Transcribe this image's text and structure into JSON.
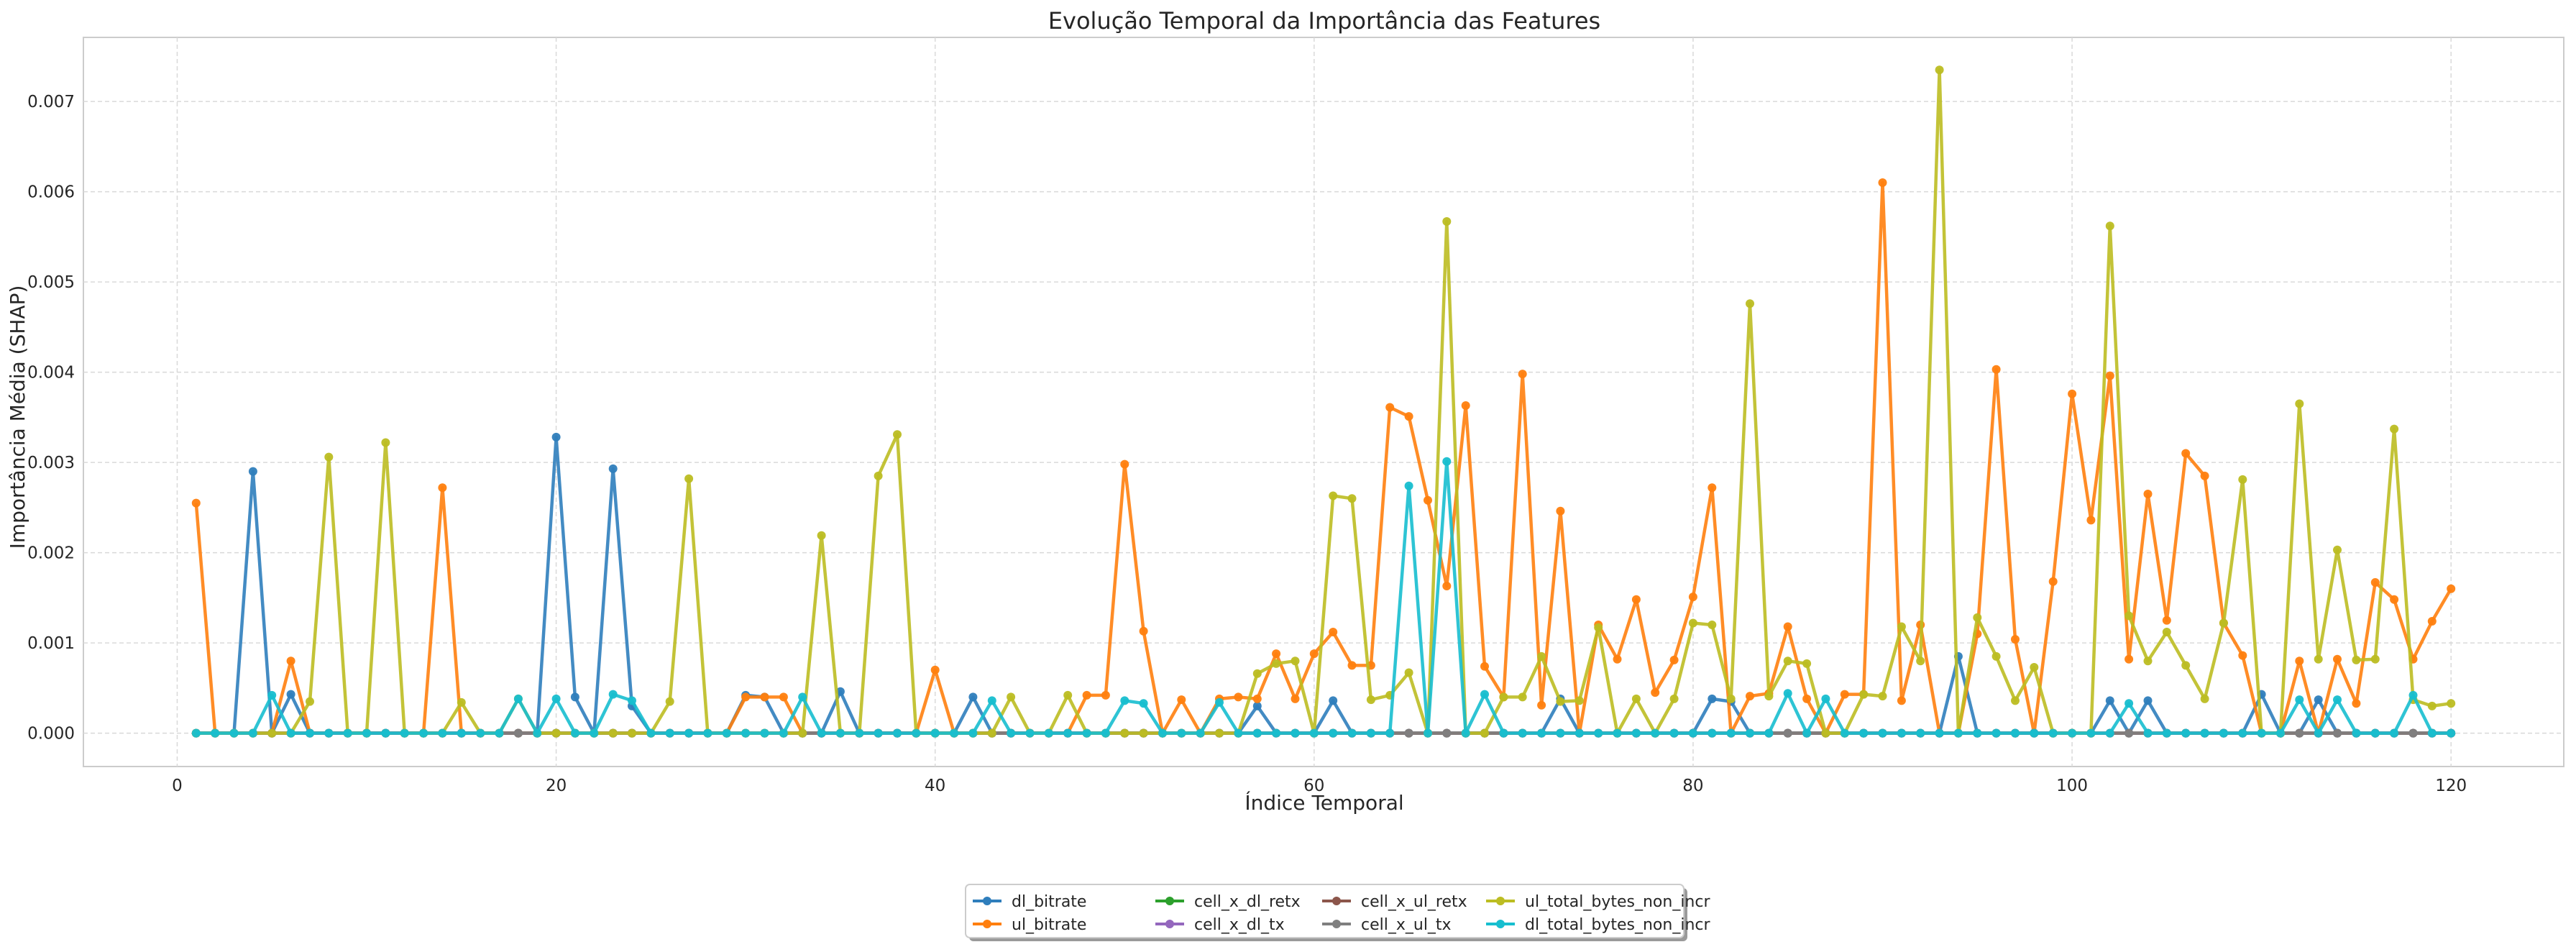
{
  "chart_data": {
    "type": "line",
    "title": "Evolução Temporal da Importância das Features",
    "xlabel": "Índice Temporal",
    "ylabel": "Importância Média (SHAP)",
    "xlim": [
      -4.95,
      125.95
    ],
    "ylim": [
      -0.00037,
      0.00771
    ],
    "xticks": [
      0,
      20,
      40,
      60,
      80,
      100,
      120
    ],
    "yticks": [
      0.0,
      0.001,
      0.002,
      0.003,
      0.004,
      0.005,
      0.006,
      0.007
    ],
    "ytick_labels": [
      "0.000",
      "0.001",
      "0.002",
      "0.003",
      "0.004",
      "0.005",
      "0.006",
      "0.007"
    ],
    "grid": true,
    "legend_position": "bottom-center",
    "x": [
      1,
      2,
      3,
      4,
      5,
      6,
      7,
      8,
      9,
      10,
      11,
      12,
      13,
      14,
      15,
      16,
      17,
      18,
      19,
      20,
      21,
      22,
      23,
      24,
      25,
      26,
      27,
      28,
      29,
      30,
      31,
      32,
      33,
      34,
      35,
      36,
      37,
      38,
      39,
      40,
      41,
      42,
      43,
      44,
      45,
      46,
      47,
      48,
      49,
      50,
      51,
      52,
      53,
      54,
      55,
      56,
      57,
      58,
      59,
      60,
      61,
      62,
      63,
      64,
      65,
      66,
      67,
      68,
      69,
      70,
      71,
      72,
      73,
      74,
      75,
      76,
      77,
      78,
      79,
      80,
      81,
      82,
      83,
      84,
      85,
      86,
      87,
      88,
      89,
      90,
      91,
      92,
      93,
      94,
      95,
      96,
      97,
      98,
      99,
      100,
      101,
      102,
      103,
      104,
      105,
      106,
      107,
      108,
      109,
      110,
      111,
      112,
      113,
      114,
      115,
      116,
      117,
      118,
      119,
      120
    ],
    "series": [
      {
        "name": "dl_bitrate",
        "color": "#2f7ebc",
        "values": [
          0,
          0,
          0,
          0.0029,
          0,
          0.00043,
          0,
          0,
          0,
          0,
          0,
          0,
          0,
          0,
          0,
          0,
          0,
          0,
          0,
          0.00328,
          0.0004,
          0,
          0.00293,
          0.0003,
          0,
          0,
          0,
          0,
          0,
          0.00042,
          0.0004,
          0,
          0,
          0,
          0.00046,
          0,
          0,
          0,
          0,
          0,
          0,
          0.0004,
          0,
          0,
          0,
          0,
          0,
          0,
          0,
          0,
          0,
          0,
          0,
          0,
          0,
          0,
          0.0003,
          0,
          0,
          0,
          0.00036,
          0,
          0,
          0,
          0,
          0,
          0,
          0,
          0,
          0,
          0,
          0,
          0.00038,
          0,
          0,
          0,
          0,
          0,
          0,
          0,
          0.00038,
          0.00035,
          0,
          0,
          0,
          0,
          0,
          0,
          0,
          0,
          0,
          0,
          0,
          0.00085,
          0,
          0,
          0,
          0,
          0,
          0,
          0,
          0.00036,
          0,
          0.00036,
          0,
          0,
          0,
          0,
          0,
          0.00043,
          0,
          0,
          0.00037,
          0,
          0,
          0,
          0,
          0,
          0,
          0
        ]
      },
      {
        "name": "ul_bitrate",
        "color": "#ff7f0e",
        "values": [
          0.00255,
          0,
          0,
          0,
          0,
          0.0008,
          0,
          0,
          0,
          0,
          0,
          0,
          0,
          0.00272,
          0,
          0,
          0,
          0,
          0,
          0,
          0,
          0,
          0,
          0,
          0,
          0,
          0,
          0,
          0,
          0.0004,
          0.0004,
          0.0004,
          0,
          0,
          0,
          0,
          0,
          0,
          0,
          0.0007,
          0,
          0,
          0,
          0,
          0,
          0,
          0,
          0.00042,
          0.00042,
          0.00298,
          0.00113,
          0,
          0.00037,
          0,
          0.00038,
          0.0004,
          0.00038,
          0.00088,
          0.00038,
          0.00088,
          0.00112,
          0.00075,
          0.00075,
          0.00361,
          0.00351,
          0.00258,
          0.00163,
          0.00363,
          0.00074,
          0.0004,
          0.00398,
          0.00031,
          0.00246,
          0,
          0.0012,
          0.00082,
          0.00148,
          0.00045,
          0.00081,
          0.00151,
          0.00272,
          0,
          0.00041,
          0.00044,
          0.00118,
          0.00038,
          0,
          0.00043,
          0.00043,
          0.0061,
          0.00036,
          0.0012,
          0,
          0,
          0.0011,
          0.00403,
          0.00104,
          0,
          0.00168,
          0.00376,
          0.00236,
          0.00396,
          0.00082,
          0.00265,
          0.00125,
          0.0031,
          0.00285,
          0.00122,
          0.00086,
          0,
          0,
          0.0008,
          0,
          0.00082,
          0.00033,
          0.00167,
          0.00148,
          0.00082,
          0.00124,
          0.0016
        ]
      },
      {
        "name": "cell_x_dl_retx",
        "color": "#2ca02c",
        "values": [
          0,
          0,
          0,
          0,
          0,
          0,
          0,
          0,
          0,
          0,
          0,
          0,
          0,
          0,
          0,
          0,
          0,
          0,
          0,
          0,
          0,
          0,
          0,
          0,
          0,
          0,
          0,
          0,
          0,
          0,
          0,
          0,
          0,
          0,
          0,
          0,
          0,
          0,
          0,
          0,
          0,
          0,
          0,
          0,
          0,
          0,
          0,
          0,
          0,
          0,
          0,
          0,
          0,
          0,
          0,
          0,
          0,
          0,
          0,
          0,
          0,
          0,
          0,
          0,
          0,
          0,
          0,
          0,
          0,
          0,
          0,
          0,
          0,
          0,
          0,
          0,
          0,
          0,
          0,
          0,
          0,
          0,
          0,
          0,
          0,
          0,
          0,
          0,
          0,
          0,
          0,
          0,
          0,
          0,
          0,
          0,
          0,
          0,
          0,
          0,
          0,
          0,
          0,
          0,
          0,
          0,
          0,
          0,
          0,
          0,
          0,
          0,
          0,
          0,
          0,
          0,
          0,
          0,
          0,
          0
        ]
      },
      {
        "name": "cell_x_dl_tx",
        "color": "#9467bd",
        "values": [
          0,
          0,
          0,
          0,
          0,
          0,
          0,
          0,
          0,
          0,
          0,
          0,
          0,
          0,
          0,
          0,
          0,
          0,
          0,
          0,
          0,
          0,
          0,
          0,
          0,
          0,
          0,
          0,
          0,
          0,
          0,
          0,
          0,
          0,
          0,
          0,
          0,
          0,
          0,
          0,
          0,
          0,
          0,
          0,
          0,
          0,
          0,
          0,
          0,
          0,
          0,
          0,
          0,
          0,
          0,
          0,
          0,
          0,
          0,
          0,
          0,
          0,
          0,
          0,
          0,
          0,
          0,
          0,
          0,
          0,
          0,
          0,
          0,
          0,
          0,
          0,
          0,
          0,
          0,
          0,
          0,
          0,
          0,
          0,
          0,
          0,
          0,
          0,
          0,
          0,
          0,
          0,
          0,
          0,
          0,
          0,
          0,
          0,
          0,
          0,
          0,
          0,
          0,
          0,
          0,
          0,
          0,
          0,
          0,
          0,
          0,
          0,
          0,
          0,
          0,
          0,
          0,
          0,
          0,
          0
        ]
      },
      {
        "name": "cell_x_ul_retx",
        "color": "#8c564b",
        "values": [
          0,
          0,
          0,
          0,
          0,
          0,
          0,
          0,
          0,
          0,
          0,
          0,
          0,
          0,
          0,
          0,
          0,
          0,
          0,
          0,
          0,
          0,
          0,
          0,
          0,
          0,
          0,
          0,
          0,
          0,
          0,
          0,
          0,
          0,
          0,
          0,
          0,
          0,
          0,
          0,
          0,
          0,
          0,
          0,
          0,
          0,
          0,
          0,
          0,
          0,
          0,
          0,
          0,
          0,
          0,
          0,
          0,
          0,
          0,
          0,
          0,
          0,
          0,
          0,
          0,
          0,
          0,
          0,
          0,
          0,
          0,
          0,
          0,
          0,
          0,
          0,
          0,
          0,
          0,
          0,
          0,
          0,
          0,
          0,
          0,
          0,
          0,
          0,
          0,
          0,
          0,
          0,
          0,
          0,
          0,
          0,
          0,
          0,
          0,
          0,
          0,
          0,
          0,
          0,
          0,
          0,
          0,
          0,
          0,
          0,
          0,
          0,
          0,
          0,
          0,
          0,
          0,
          0,
          0,
          0
        ]
      },
      {
        "name": "cell_x_ul_tx",
        "color": "#7f7f7f",
        "values": [
          0,
          0,
          0,
          0,
          0,
          0,
          0,
          0,
          0,
          0,
          0,
          0,
          0,
          0,
          0,
          0,
          0,
          0,
          0,
          0,
          0,
          0,
          0,
          0,
          0,
          0,
          0,
          0,
          0,
          0,
          0,
          0,
          0,
          0,
          0,
          0,
          0,
          0,
          0,
          0,
          0,
          0,
          0,
          0,
          0,
          0,
          0,
          0,
          0,
          0,
          0,
          0,
          0,
          0,
          0,
          0,
          0,
          0,
          0,
          0,
          0,
          0,
          0,
          0,
          0,
          0,
          0,
          0,
          0,
          0,
          0,
          0,
          0,
          0,
          0,
          0,
          0,
          0,
          0,
          0,
          0,
          0,
          0,
          0,
          0,
          0,
          0,
          0,
          0,
          0,
          0,
          0,
          0,
          0,
          0,
          0,
          0,
          0,
          0,
          0,
          0,
          0,
          0,
          0,
          0,
          0,
          0,
          0,
          0,
          0,
          0,
          0,
          0,
          0,
          0,
          0,
          0,
          0,
          0,
          0
        ]
      },
      {
        "name": "ul_total_bytes_non_incr",
        "color": "#bcbd22",
        "values": [
          0,
          0,
          0,
          0,
          0,
          0,
          0.00035,
          0.00306,
          0,
          0,
          0.00322,
          0,
          0,
          0,
          0.00034,
          0,
          0,
          0.00038,
          0,
          0,
          0,
          0,
          0,
          0,
          0,
          0.00035,
          0.00282,
          0,
          0,
          0,
          0,
          0,
          0,
          0.00219,
          0,
          0,
          0.00285,
          0.00331,
          0,
          0,
          0,
          0,
          0,
          0.0004,
          0,
          0,
          0.00042,
          0,
          0,
          0,
          0,
          0,
          0,
          0,
          0,
          0,
          0.00066,
          0.00077,
          0.0008,
          0,
          0.00263,
          0.0026,
          0.00037,
          0.00042,
          0.00067,
          0,
          0.00567,
          0,
          0,
          0.0004,
          0.0004,
          0.00085,
          0.00035,
          0.00036,
          0.00117,
          0,
          0.00038,
          0,
          0.00038,
          0.00122,
          0.0012,
          0.00038,
          0.00476,
          0.00041,
          0.0008,
          0.00077,
          0,
          0,
          0.00043,
          0.00041,
          0.00118,
          0.0008,
          0.00735,
          0,
          0.00128,
          0.00085,
          0.00036,
          0.00073,
          0,
          0,
          0,
          0.00562,
          0.0013,
          0.0008,
          0.00112,
          0.00075,
          0.00038,
          0.00122,
          0.00281,
          0,
          0,
          0.00365,
          0.00082,
          0.00203,
          0.00081,
          0.00082,
          0.00337,
          0.00037,
          0.0003,
          0.00033
        ]
      },
      {
        "name": "dl_total_bytes_non_incr",
        "color": "#17becf",
        "values": [
          0,
          0,
          0,
          0,
          0.00042,
          0,
          0,
          0,
          0,
          0,
          0,
          0,
          0,
          0,
          0,
          0,
          0,
          0.00038,
          0,
          0.00038,
          0,
          0,
          0.00043,
          0.00036,
          0,
          0,
          0,
          0,
          0,
          0,
          0,
          0,
          0.0004,
          0,
          0,
          0,
          0,
          0,
          0,
          0,
          0,
          0,
          0.00036,
          0,
          0,
          0,
          0,
          0,
          0,
          0.00036,
          0.00033,
          0,
          0,
          0,
          0.00034,
          0,
          0,
          0,
          0,
          0,
          0,
          0,
          0,
          0,
          0.00274,
          0,
          0.00301,
          0,
          0.00043,
          0,
          0,
          0,
          0,
          0,
          0,
          0,
          0,
          0,
          0,
          0,
          0,
          0,
          0,
          0,
          0.00044,
          0,
          0.00038,
          0,
          0,
          0,
          0,
          0,
          0,
          0,
          0,
          0,
          0,
          0,
          0,
          0,
          0,
          0,
          0.00033,
          0,
          0,
          0,
          0,
          0,
          0,
          0,
          0,
          0.00037,
          0,
          0.00037,
          0,
          0,
          0,
          0.00042,
          0,
          0
        ]
      }
    ]
  }
}
